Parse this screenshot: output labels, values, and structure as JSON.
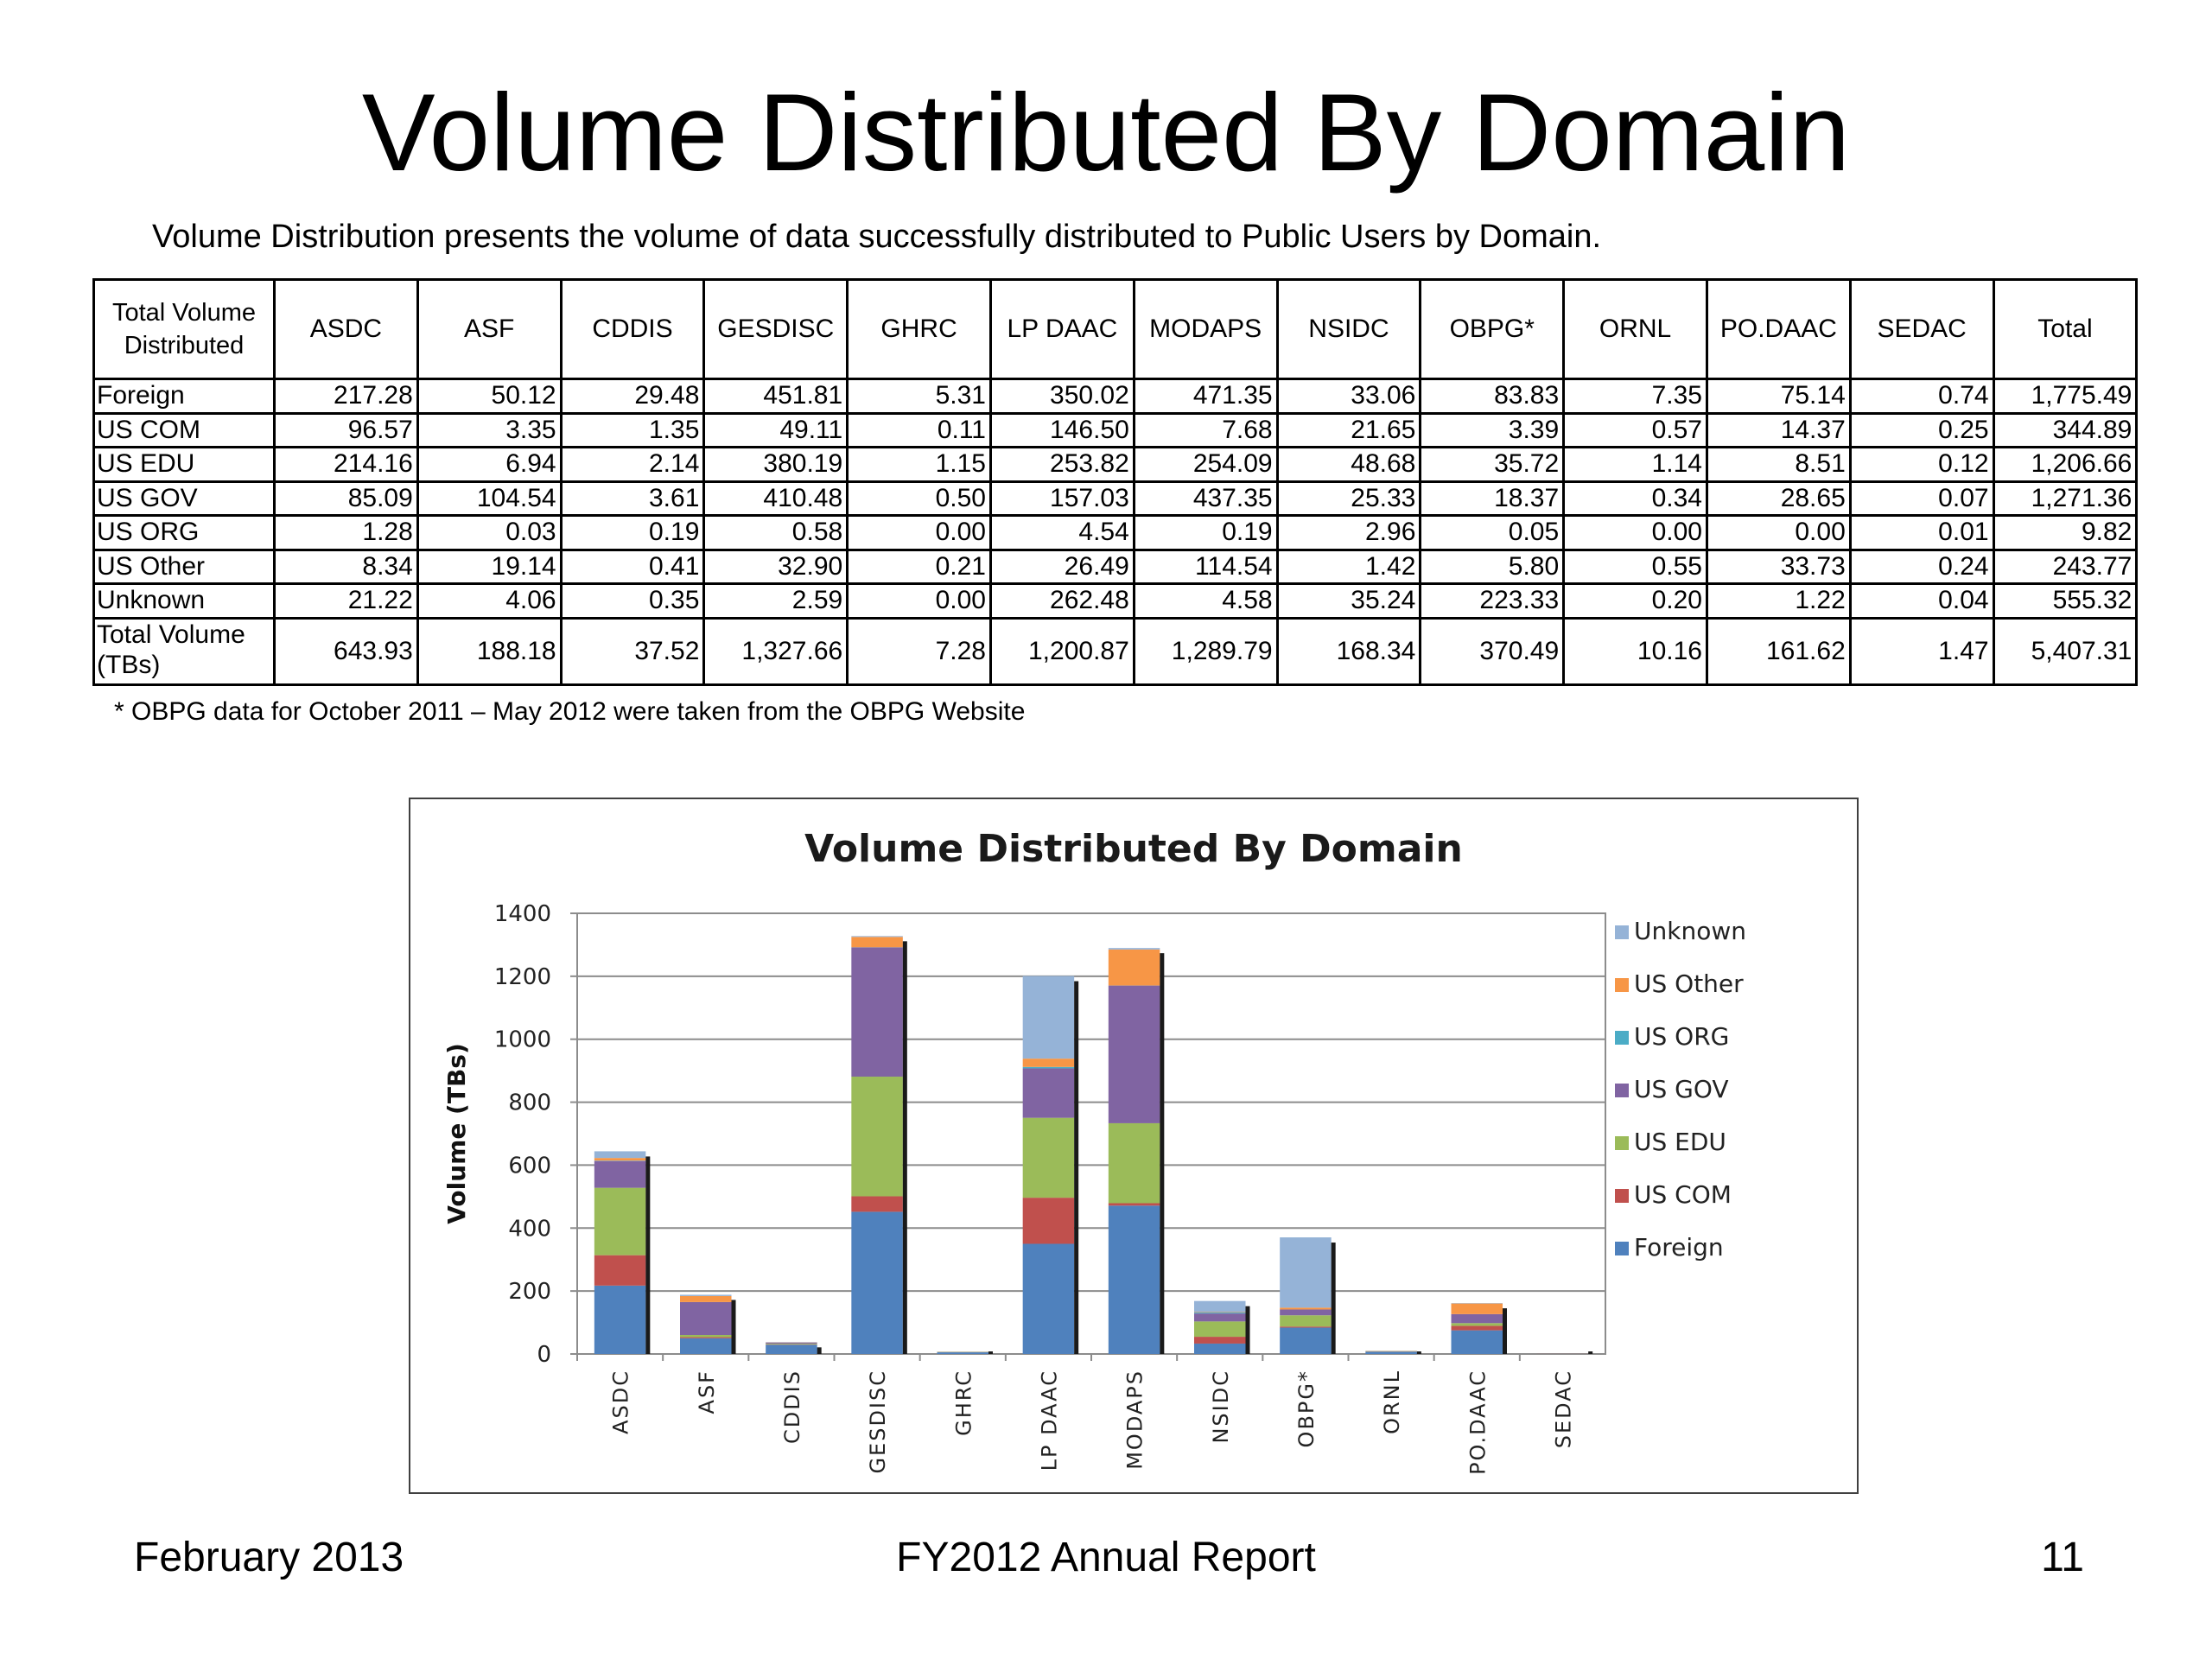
{
  "slide": {
    "title": "Volume Distributed By Domain",
    "subtitle": "Volume Distribution presents the volume of data successfully distributed to Public Users by Domain.",
    "footnote": "* OBPG data for October 2011 – May 2012 were taken from the OBPG Website"
  },
  "table": {
    "corner_header": "Total Volume Distributed",
    "columns": [
      "ASDC",
      "ASF",
      "CDDIS",
      "GESDISC",
      "GHRC",
      "LP DAAC",
      "MODAPS",
      "NSIDC",
      "OBPG*",
      "ORNL",
      "PO.DAAC",
      "SEDAC",
      "Total"
    ],
    "rows": [
      {
        "label": "Foreign",
        "values": [
          "217.28",
          "50.12",
          "29.48",
          "451.81",
          "5.31",
          "350.02",
          "471.35",
          "33.06",
          "83.83",
          "7.35",
          "75.14",
          "0.74",
          "1,775.49"
        ]
      },
      {
        "label": "US COM",
        "values": [
          "96.57",
          "3.35",
          "1.35",
          "49.11",
          "0.11",
          "146.50",
          "7.68",
          "21.65",
          "3.39",
          "0.57",
          "14.37",
          "0.25",
          "344.89"
        ]
      },
      {
        "label": "US EDU",
        "values": [
          "214.16",
          "6.94",
          "2.14",
          "380.19",
          "1.15",
          "253.82",
          "254.09",
          "48.68",
          "35.72",
          "1.14",
          "8.51",
          "0.12",
          "1,206.66"
        ]
      },
      {
        "label": "US GOV",
        "values": [
          "85.09",
          "104.54",
          "3.61",
          "410.48",
          "0.50",
          "157.03",
          "437.35",
          "25.33",
          "18.37",
          "0.34",
          "28.65",
          "0.07",
          "1,271.36"
        ]
      },
      {
        "label": "US ORG",
        "values": [
          "1.28",
          "0.03",
          "0.19",
          "0.58",
          "0.00",
          "4.54",
          "0.19",
          "2.96",
          "0.05",
          "0.00",
          "0.00",
          "0.01",
          "9.82"
        ]
      },
      {
        "label": "US Other",
        "values": [
          "8.34",
          "19.14",
          "0.41",
          "32.90",
          "0.21",
          "26.49",
          "114.54",
          "1.42",
          "5.80",
          "0.55",
          "33.73",
          "0.24",
          "243.77"
        ]
      },
      {
        "label": "Unknown",
        "values": [
          "21.22",
          "4.06",
          "0.35",
          "2.59",
          "0.00",
          "262.48",
          "4.58",
          "35.24",
          "223.33",
          "0.20",
          "1.22",
          "0.04",
          "555.32"
        ]
      },
      {
        "label": "Total Volume (TBs)",
        "values": [
          "643.93",
          "188.18",
          "37.52",
          "1,327.66",
          "7.28",
          "1,200.87",
          "1,289.79",
          "168.34",
          "370.49",
          "10.16",
          "161.62",
          "1.47",
          "5,407.31"
        ]
      }
    ]
  },
  "chart_data": {
    "type": "bar",
    "stacked": true,
    "title": "Volume Distributed By Domain",
    "ylabel": "Volume (TBs)",
    "xlabel": "",
    "ylim": [
      0,
      1400
    ],
    "yticks": [
      0,
      200,
      400,
      600,
      800,
      1000,
      1200,
      1400
    ],
    "grid": true,
    "legend_position": "right",
    "categories": [
      "ASDC",
      "ASF",
      "CDDIS",
      "GESDISC",
      "GHRC",
      "LP DAAC",
      "MODAPS",
      "NSIDC",
      "OBPG*",
      "ORNL",
      "PO.DAAC",
      "SEDAC"
    ],
    "series": [
      {
        "name": "Foreign",
        "color": "#4f81bd",
        "values": [
          217.28,
          50.12,
          29.48,
          451.81,
          5.31,
          350.02,
          471.35,
          33.06,
          83.83,
          7.35,
          75.14,
          0.74
        ]
      },
      {
        "name": "US COM",
        "color": "#c0504d",
        "values": [
          96.57,
          3.35,
          1.35,
          49.11,
          0.11,
          146.5,
          7.68,
          21.65,
          3.39,
          0.57,
          14.37,
          0.25
        ]
      },
      {
        "name": "US EDU",
        "color": "#9bbb59",
        "values": [
          214.16,
          6.94,
          2.14,
          380.19,
          1.15,
          253.82,
          254.09,
          48.68,
          35.72,
          1.14,
          8.51,
          0.12
        ]
      },
      {
        "name": "US GOV",
        "color": "#8064a2",
        "values": [
          85.09,
          104.54,
          3.61,
          410.48,
          0.5,
          157.03,
          437.35,
          25.33,
          18.37,
          0.34,
          28.65,
          0.07
        ]
      },
      {
        "name": "US ORG",
        "color": "#4bacc6",
        "values": [
          1.28,
          0.03,
          0.19,
          0.58,
          0.0,
          4.54,
          0.19,
          2.96,
          0.05,
          0.0,
          0.0,
          0.01
        ]
      },
      {
        "name": "US Other",
        "color": "#f79646",
        "values": [
          8.34,
          19.14,
          0.41,
          32.9,
          0.21,
          26.49,
          114.54,
          1.42,
          5.8,
          0.55,
          33.73,
          0.24
        ]
      },
      {
        "name": "Unknown",
        "color": "#95b3d7",
        "values": [
          21.22,
          4.06,
          0.35,
          2.59,
          0.0,
          262.48,
          4.58,
          35.24,
          223.33,
          0.2,
          1.22,
          0.04
        ]
      }
    ]
  },
  "footer": {
    "date": "February 2013",
    "report": "FY2012 Annual Report",
    "page": "11"
  }
}
